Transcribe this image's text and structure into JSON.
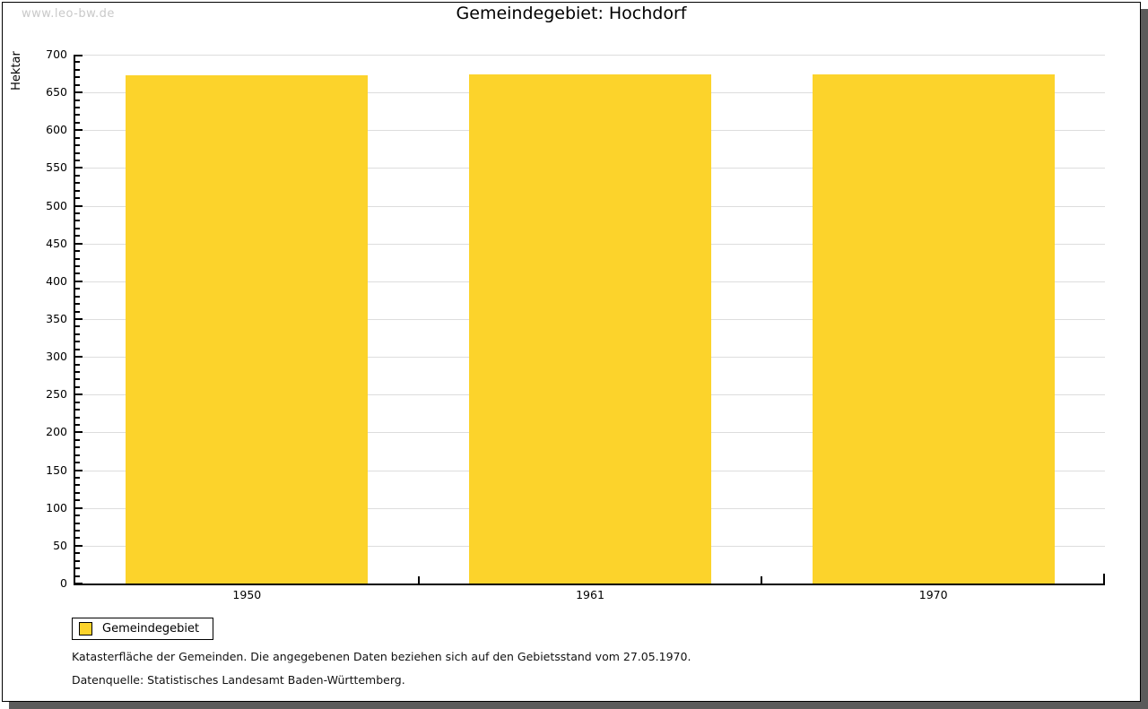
{
  "watermark": "www.leo-bw.de",
  "title": "Gemeindegebiet: Hochdorf",
  "chart_data": {
    "type": "bar",
    "title": "Gemeindegebiet: Hochdorf",
    "categories": [
      "1950",
      "1961",
      "1970"
    ],
    "values": [
      673,
      674,
      674
    ],
    "xlabel": "",
    "ylabel": "Hektar",
    "ylim": [
      0,
      700
    ],
    "ytick_major_interval": 50,
    "ytick_minor_interval": 10,
    "grid": true,
    "legend_position": "bottom-left",
    "series_name": "Gemeindegebiet"
  },
  "legend": {
    "label": "Gemeindegebiet"
  },
  "footnotes": [
    "Katasterfläche der Gemeinden. Die angegebenen Daten beziehen sich auf den Gebietsstand vom 27.05.1970.",
    "Datenquelle: Statistisches Landesamt Baden-Württemberg."
  ],
  "colors": {
    "bar": "#fcd32b",
    "grid": "#dddddd",
    "axis": "#000000",
    "watermark": "#c9c9c9",
    "shadow": "#5b5b5b",
    "background": "#ffffff"
  }
}
